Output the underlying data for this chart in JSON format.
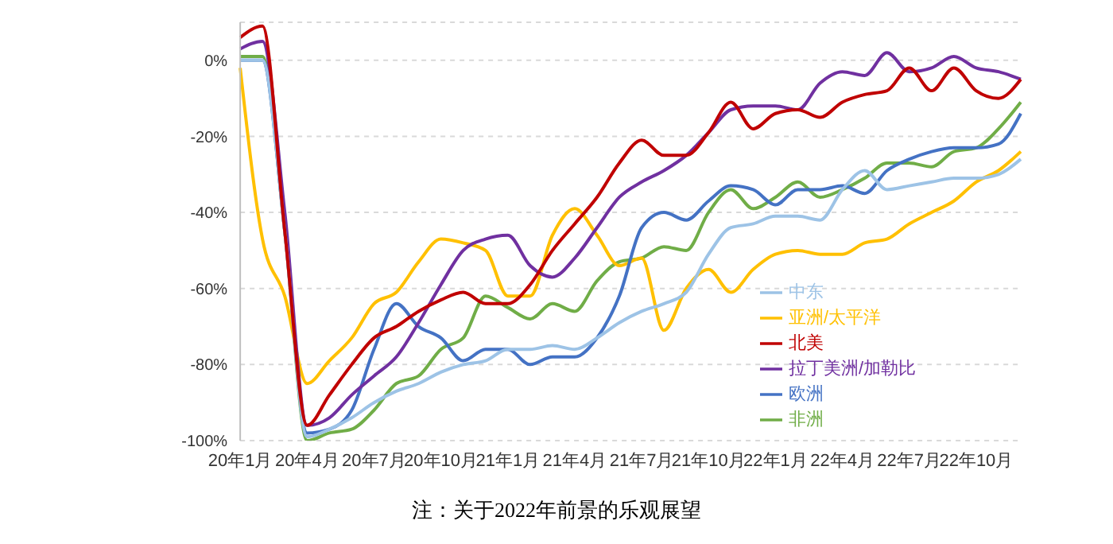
{
  "chart_data": {
    "type": "line",
    "categories": [
      "20年1月",
      null,
      null,
      "20年4月",
      null,
      null,
      "20年7月",
      null,
      null,
      "20年10月",
      null,
      null,
      "21年1月",
      null,
      null,
      "21年4月",
      null,
      null,
      "21年7月",
      null,
      null,
      "21年10月",
      null,
      null,
      "22年1月",
      null,
      null,
      "22年4月",
      null,
      null,
      "22年7月",
      null,
      null,
      "22年10月",
      null,
      null
    ],
    "series": [
      {
        "name": "非洲",
        "color": "#70ad47",
        "values": [
          1,
          1,
          -45,
          -100,
          -98,
          -97,
          -92,
          -85,
          -83,
          -76,
          -73,
          -62,
          -65,
          -68,
          -64,
          -66,
          -58,
          -53,
          -52,
          -49,
          -50,
          -40,
          -34,
          -39,
          -36,
          -32,
          -36,
          -34,
          -31,
          -27,
          -27,
          -28,
          -24,
          -23,
          -18,
          -11
        ]
      },
      {
        "name": "亚洲/太平洋",
        "color": "#ffc000",
        "values": [
          -2,
          -47,
          -62,
          -85,
          -79,
          -73,
          -64,
          -61,
          -53,
          -47,
          -48,
          -50,
          -62,
          -62,
          -46,
          -39,
          -46,
          -54,
          -52,
          -71,
          -60,
          -55,
          -61,
          -55,
          -51,
          -50,
          -51,
          -51,
          -48,
          -47,
          -43,
          -40,
          -37,
          -32,
          -29,
          -24
        ]
      },
      {
        "name": "欧洲",
        "color": "#4472c4",
        "values": [
          0,
          0,
          -45,
          -98,
          -97,
          -92,
          -76,
          -64,
          -70,
          -73,
          -79,
          -76,
          -76,
          -80,
          -78,
          -78,
          -73,
          -62,
          -44,
          -40,
          -42,
          -37,
          -33,
          -34,
          -38,
          -34,
          -34,
          -33,
          -35,
          -29,
          -26,
          -24,
          -23,
          -23,
          -22,
          -14
        ]
      },
      {
        "name": "拉丁美洲/加勒比",
        "color": "#7030a0",
        "values": [
          3,
          5,
          -40,
          -96,
          -94,
          -88,
          -83,
          -78,
          -69,
          -59,
          -50,
          -47,
          -46,
          -54,
          -57,
          -52,
          -44,
          -36,
          -32,
          -29,
          -25,
          -19,
          -13,
          -12,
          -12,
          -13,
          -6,
          -3,
          -4,
          2,
          -3,
          -2,
          1,
          -2,
          -3,
          -5
        ]
      },
      {
        "name": "中东",
        "color": "#9dc3e6",
        "values": [
          0,
          0,
          -45,
          -99,
          -97,
          -94,
          -90,
          -87,
          -85,
          -82,
          -80,
          -79,
          -76,
          -76,
          -75,
          -76,
          -73,
          -69,
          -66,
          -64,
          -61,
          -51,
          -44,
          -43,
          -41,
          -41,
          -42,
          -34,
          -29,
          -34,
          -33,
          -32,
          -31,
          -31,
          -30,
          -26
        ]
      },
      {
        "name": "北美",
        "color": "#c00000",
        "values": [
          6,
          9,
          -45,
          -96,
          -88,
          -80,
          -73,
          -70,
          -66,
          -63,
          -61,
          -64,
          -64,
          -59,
          -50,
          -43,
          -36,
          -27,
          -21,
          -25,
          -25,
          -19,
          -11,
          -18,
          -14,
          -13,
          -15,
          -11,
          -9,
          -8,
          -2,
          -8,
          -2,
          -8,
          -10,
          -5
        ]
      }
    ],
    "ylim": [
      -100,
      10
    ],
    "yticks": [
      {
        "value": -100,
        "label": "-100%"
      },
      {
        "value": -80,
        "label": "-80%"
      },
      {
        "value": -60,
        "label": "-60%"
      },
      {
        "value": -40,
        "label": "-40%"
      },
      {
        "value": -20,
        "label": "-20%"
      },
      {
        "value": 0,
        "label": "0%"
      }
    ],
    "grid": "y",
    "legend": "bottom right",
    "marker": "none",
    "line_style": "solid",
    "annotations": [
      "注：关于2022年前景的乐观展望"
    ]
  }
}
